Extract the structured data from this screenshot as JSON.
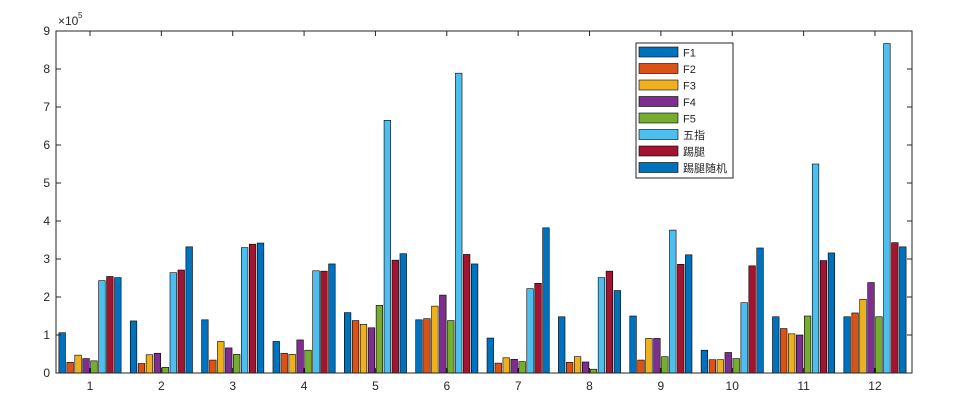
{
  "chart_data": {
    "type": "bar",
    "categories": [
      "1",
      "2",
      "3",
      "4",
      "5",
      "6",
      "7",
      "8",
      "9",
      "10",
      "11",
      "12"
    ],
    "ylim": [
      0,
      900000
    ],
    "y_ticks": [
      0,
      1,
      2,
      3,
      4,
      5,
      6,
      7,
      8,
      9
    ],
    "y_multiplier_base": "×10",
    "y_multiplier_exp": "5",
    "grid": false,
    "legend_position": "top-right",
    "series": [
      {
        "name": "F1",
        "color": "#0072BD",
        "values": [
          106000,
          137000,
          140000,
          83000,
          159000,
          140000,
          92000,
          148000,
          150000,
          60000,
          148000,
          148000
        ]
      },
      {
        "name": "F2",
        "color": "#D95319",
        "values": [
          28000,
          25000,
          34000,
          52000,
          138000,
          143000,
          26000,
          28000,
          34000,
          35000,
          117000,
          158000
        ]
      },
      {
        "name": "F3",
        "color": "#EDB120",
        "values": [
          47000,
          48000,
          83000,
          49000,
          128000,
          176000,
          40000,
          43000,
          91000,
          35000,
          103000,
          194000
        ]
      },
      {
        "name": "F4",
        "color": "#7E2F8E",
        "values": [
          38000,
          52000,
          66000,
          87000,
          119000,
          205000,
          36000,
          29000,
          91000,
          54000,
          100000,
          238000
        ]
      },
      {
        "name": "F5",
        "color": "#77AC30",
        "values": [
          32000,
          15000,
          49000,
          60000,
          178000,
          138000,
          30000,
          10000,
          43000,
          38000,
          150000,
          148000
        ]
      },
      {
        "name": "五指",
        "color": "#4DBEEE",
        "values": [
          243000,
          264000,
          330000,
          269000,
          665000,
          789000,
          222000,
          251000,
          376000,
          185000,
          550000,
          867000
        ]
      },
      {
        "name": "踢腿",
        "color": "#A2142F",
        "values": [
          254000,
          271000,
          339000,
          268000,
          297000,
          312000,
          236000,
          268000,
          286000,
          282000,
          296000,
          343000
        ]
      },
      {
        "name": "踢腿随机",
        "color": "#0072BD",
        "values": [
          251000,
          332000,
          342000,
          287000,
          314000,
          287000,
          382000,
          217000,
          311000,
          329000,
          316000,
          332000
        ]
      }
    ]
  }
}
